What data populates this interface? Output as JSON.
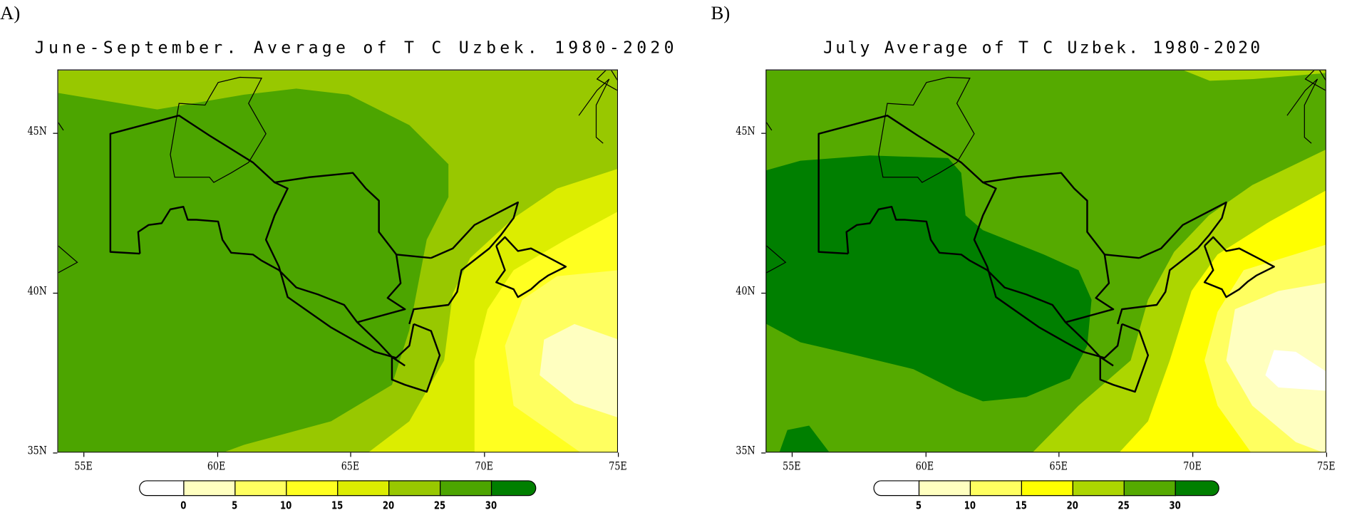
{
  "panels": [
    {
      "label": "A)",
      "title": "June-September. Average of T C Uzbek. 1980-2020",
      "lon_ticks": [
        "55E",
        "60E",
        "65E",
        "70E",
        "75E"
      ],
      "lat_ticks": [
        "45N",
        "40N",
        "35N"
      ],
      "colorbar": {
        "labels": [
          "0",
          "5",
          "10",
          "15",
          "20",
          "25",
          "30"
        ],
        "colors": [
          "#ffffff",
          "#ffffc0",
          "#ffff60",
          "#ffff20",
          "#dced00",
          "#98c800",
          "#4ca500",
          "#007f00"
        ]
      }
    },
    {
      "label": "B)",
      "title": "July Average of T C Uzbek. 1980-2020",
      "lon_ticks": [
        "55E",
        "60E",
        "65E",
        "70E",
        "75E"
      ],
      "lat_ticks": [
        "45N",
        "40N",
        "35N"
      ],
      "colorbar": {
        "labels": [
          "5",
          "10",
          "15",
          "20",
          "25",
          "30"
        ],
        "colors": [
          "#ffffff",
          "#ffffc0",
          "#ffff60",
          "#ffff00",
          "#acd600",
          "#55aa00",
          "#007f00"
        ]
      }
    }
  ],
  "chart_data": {
    "type": "heatmap",
    "variable": "T C",
    "region": "Uzbek.",
    "lon_range": [
      54,
      75
    ],
    "lat_range": [
      35,
      47
    ],
    "maps": [
      {
        "title": "June-September. Average of T C Uzbek. 1980-2020",
        "levels": [
          0,
          5,
          10,
          15,
          20,
          25,
          30
        ],
        "range_shown": "approx 5 to 30, warmest (25-30) west, coolest (0-5) southeast"
      },
      {
        "title": "July Average of T C Uzbek. 1980-2020",
        "levels": [
          5,
          10,
          15,
          20,
          25,
          30
        ],
        "range_shown": "approx <5 to >30, >30 in west-central, <5 in southeast"
      }
    ]
  }
}
